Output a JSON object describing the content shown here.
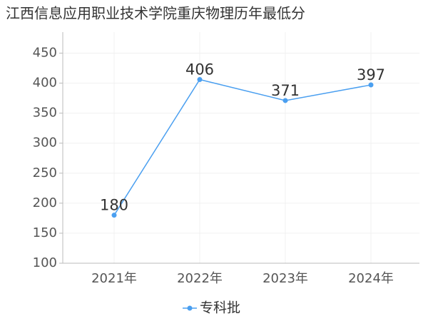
{
  "chart_data": {
    "type": "line",
    "title": "江西信息应用职业技术学院重庆物理历年最低分",
    "categories": [
      "2021年",
      "2022年",
      "2023年",
      "2024年"
    ],
    "series": [
      {
        "name": "专科批",
        "color": "#4a9ff0",
        "values": [
          180,
          406,
          371,
          397
        ]
      }
    ],
    "ylim": [
      100,
      485
    ],
    "yticks": [
      100,
      150,
      200,
      250,
      300,
      350,
      400,
      450
    ],
    "grid": true
  }
}
